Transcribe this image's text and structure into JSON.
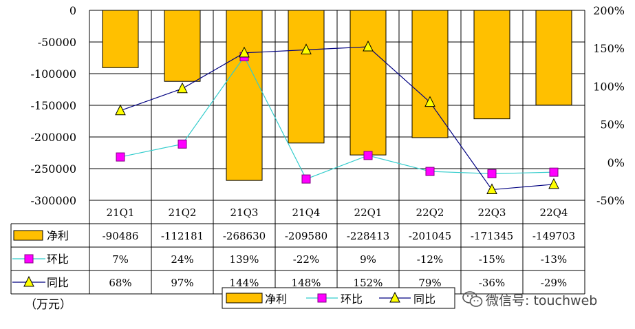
{
  "chart_data": {
    "type": "bar",
    "categories": [
      "21Q1",
      "21Q2",
      "21Q3",
      "21Q4",
      "22Q1",
      "22Q2",
      "22Q3",
      "22Q4"
    ],
    "series": [
      {
        "name": "净利",
        "type": "bar",
        "axis": "left",
        "values": [
          -90486,
          -112181,
          -268630,
          -209580,
          -228413,
          -201045,
          -171345,
          -149703
        ],
        "labels": [
          "-90486",
          "-112181",
          "-268630",
          "-209580",
          "-228413",
          "-201045",
          "-171345",
          "-149703"
        ],
        "color": "#FFC000"
      },
      {
        "name": "环比",
        "type": "line",
        "axis": "right",
        "unit": "%",
        "values": [
          7,
          24,
          139,
          -22,
          9,
          -12,
          -15,
          -13
        ],
        "labels": [
          "7%",
          "24%",
          "139%",
          "-22%",
          "9%",
          "-12%",
          "-15%",
          "-13%"
        ],
        "color": "#33CCCC",
        "marker": "square",
        "marker_color": "#FF00FF"
      },
      {
        "name": "同比",
        "type": "line",
        "axis": "right",
        "unit": "%",
        "values": [
          68,
          97,
          144,
          148,
          152,
          79,
          -36,
          -29
        ],
        "labels": [
          "68%",
          "97%",
          "144%",
          "148%",
          "152%",
          "79%",
          "-36%",
          "-29%"
        ],
        "color": "#000080",
        "marker": "triangle",
        "marker_color": "#FFFF00"
      }
    ],
    "ylim_left": [
      -300000,
      0
    ],
    "yticks_left": [
      "0",
      "-50000",
      "-100000",
      "-150000",
      "-200000",
      "-250000",
      "-300000"
    ],
    "ylim_right": [
      -50,
      200
    ],
    "yticks_right": [
      "200%",
      "150%",
      "100%",
      "50%",
      "0%",
      "-50%"
    ],
    "grid": true,
    "data_table": true,
    "legend_position": "bottom",
    "unit_label": "（万元）"
  },
  "watermark": {
    "icon": "wechat-icon",
    "text": "微信号: touchweb"
  }
}
